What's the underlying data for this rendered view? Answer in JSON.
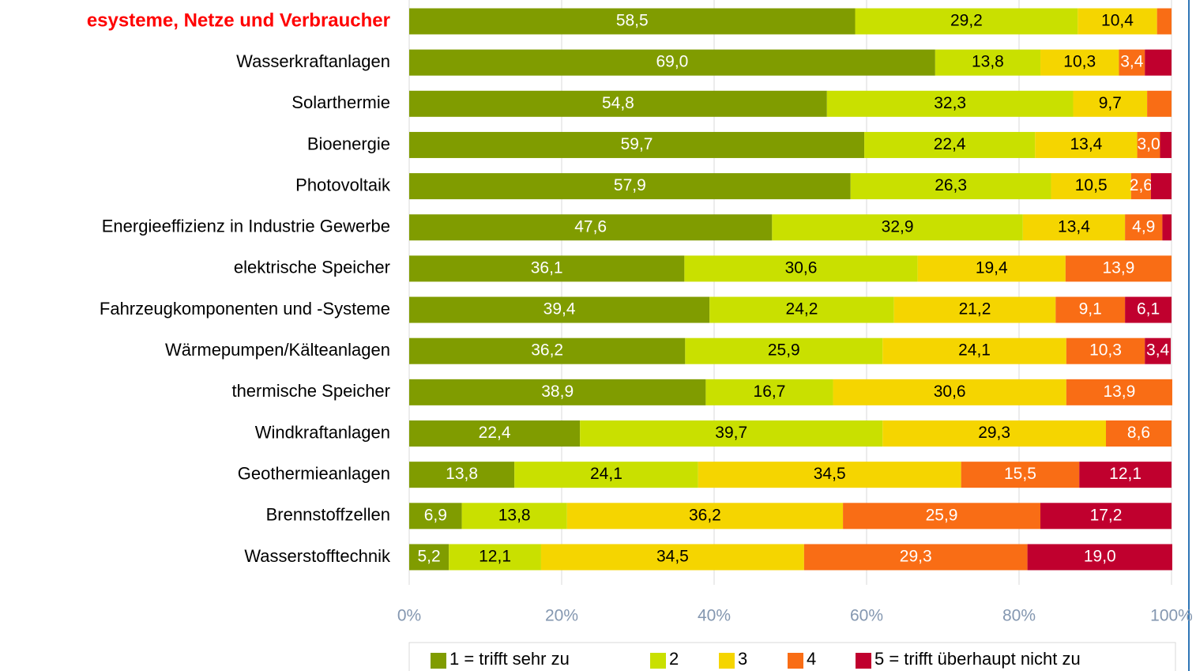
{
  "chart_data": {
    "type": "stacked-bar-horizontal",
    "categories": [
      "esysteme, Netze und Verbraucher",
      "Wasserkraftanlagen",
      "Solarthermie",
      "Bioenergie",
      "Photovoltaik",
      "Energieeffizienz in Industrie Gewerbe",
      "elektrische Speicher",
      "Fahrzeugkomponenten und -Systeme",
      "Wärmepumpen/Kälteanlagen",
      "thermische Speicher",
      "Windkraftanlagen",
      "Geothermieanlagen",
      "Brennstoffzellen",
      "Wasserstofftechnik"
    ],
    "series": [
      {
        "name": "1 = trifft sehr zu",
        "color": "#809c00",
        "values": [
          58.5,
          69.0,
          54.8,
          59.7,
          57.9,
          47.6,
          36.1,
          39.4,
          36.2,
          38.9,
          22.4,
          13.8,
          6.9,
          5.2
        ],
        "value_labels": [
          "58,5",
          "69,0",
          "54,8",
          "59,7",
          "57,9",
          "47,6",
          "36,1",
          "39,4",
          "36,2",
          "38,9",
          "22,4",
          "13,8",
          "6,9",
          "5,2"
        ]
      },
      {
        "name": "2",
        "color": "#c9e000",
        "values": [
          29.2,
          13.8,
          32.3,
          22.4,
          26.3,
          32.9,
          30.6,
          24.2,
          25.9,
          16.7,
          39.7,
          24.1,
          13.8,
          12.1
        ],
        "value_labels": [
          "29,2",
          "13,8",
          "32,3",
          "22,4",
          "26,3",
          "32,9",
          "30,6",
          "24,2",
          "25,9",
          "16,7",
          "39,7",
          "24,1",
          "13,8",
          "12,1"
        ]
      },
      {
        "name": "3",
        "color": "#f5d500",
        "values": [
          10.4,
          10.3,
          9.7,
          13.4,
          10.5,
          13.4,
          19.4,
          21.2,
          24.1,
          30.6,
          29.3,
          34.5,
          36.2,
          34.5
        ],
        "value_labels": [
          "10,4",
          "10,3",
          "9,7",
          "13,4",
          "10,5",
          "13,4",
          "19,4",
          "21,2",
          "24,1",
          "30,6",
          "29,3",
          "34,5",
          "36,2",
          "34,5"
        ]
      },
      {
        "name": "4",
        "color": "#f96d15",
        "values": [
          1.9,
          3.4,
          3.2,
          3.0,
          2.6,
          4.9,
          13.9,
          9.1,
          10.3,
          13.9,
          8.6,
          15.5,
          25.9,
          29.3
        ],
        "value_labels": [
          null,
          "3,4",
          null,
          "3,0",
          "2,6",
          "4,9",
          "13,9",
          "9,1",
          "10,3",
          "13,9",
          "8,6",
          "15,5",
          "25,9",
          "29,3"
        ]
      },
      {
        "name": "5 = trifft überhaupt nicht zu",
        "color": "#c0002e",
        "values": [
          0,
          3.5,
          0,
          1.5,
          2.7,
          1.2,
          0,
          6.1,
          3.4,
          0,
          0,
          12.1,
          17.2,
          19.0
        ],
        "value_labels": [
          null,
          null,
          null,
          null,
          null,
          null,
          null,
          "6,1",
          "3,4",
          null,
          null,
          "12,1",
          "17,2",
          "19,0"
        ]
      }
    ],
    "xlim": [
      0,
      100
    ],
    "xticks": [
      {
        "value": 0,
        "label": "0%"
      },
      {
        "value": 20,
        "label": "20%"
      },
      {
        "value": 40,
        "label": "40%"
      },
      {
        "value": 60,
        "label": "60%"
      },
      {
        "value": 80,
        "label": "80%"
      },
      {
        "value": 100,
        "label": "100%"
      }
    ],
    "grid": true,
    "legend": "bottom"
  }
}
